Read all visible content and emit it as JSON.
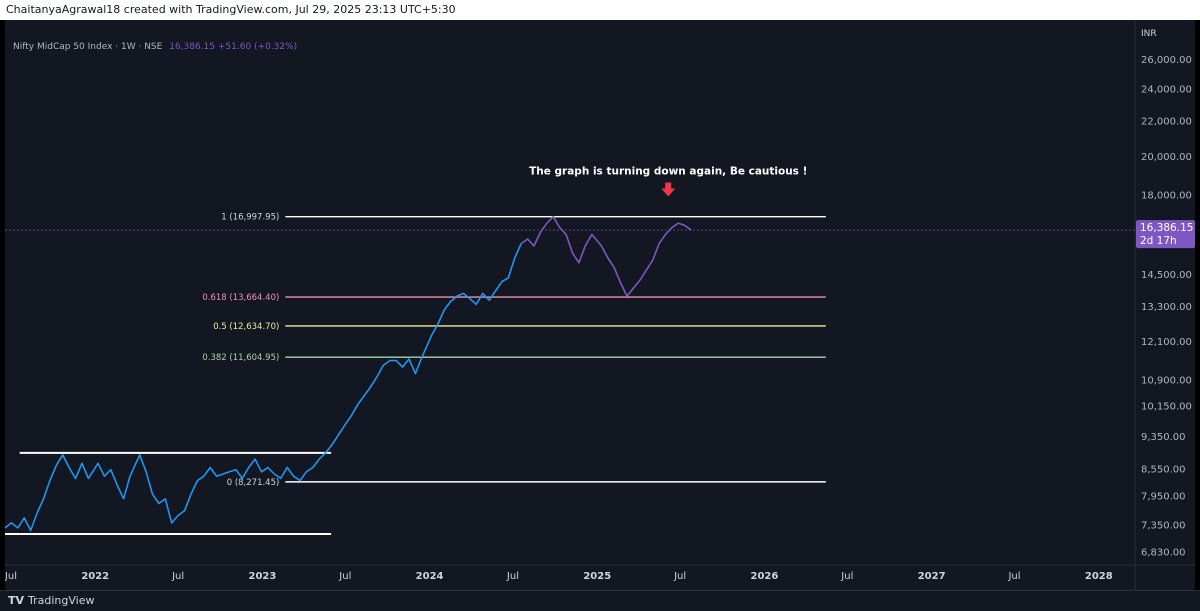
{
  "header": {
    "credit": "ChaitanyaAgrawal18 created with TradingView.com, Jul 29, 2025 23:13 UTC+5:30"
  },
  "legend": {
    "symbol": "Nifty MidCap 50 Index · 1W · NSE",
    "value": "16,386.15 +51.60 (+0.32%)"
  },
  "footer": {
    "brand_mark": "TV",
    "brand": "TradingView"
  },
  "colors": {
    "background": "#131722",
    "price_line": "#2196f3",
    "price_line_recent": "#7e57c2",
    "arrow": "#f23645",
    "fib_618": "#f48fb1",
    "fib_05": "#e6ee9c",
    "fib_0382": "#a5d6a7",
    "current_price_badge": "#7e57c2"
  },
  "chart_data": {
    "type": "line",
    "title": "Nifty MidCap 50 Index · 1W · NSE",
    "currency": "INR",
    "y_scale": "log",
    "ylim": [
      6600,
      29000
    ],
    "xlim": [
      "2021-06-18",
      "2028-03-20"
    ],
    "grid": false,
    "x_ticks": [
      {
        "label": "Jul",
        "date": "2021-07-01"
      },
      {
        "label": "2022",
        "date": "2022-01-01"
      },
      {
        "label": "Jul",
        "date": "2022-07-01"
      },
      {
        "label": "2023",
        "date": "2023-01-01"
      },
      {
        "label": "Jul",
        "date": "2023-07-01"
      },
      {
        "label": "2024",
        "date": "2024-01-01"
      },
      {
        "label": "Jul",
        "date": "2024-07-01"
      },
      {
        "label": "2025",
        "date": "2025-01-01"
      },
      {
        "label": "Jul",
        "date": "2025-07-01"
      },
      {
        "label": "2026",
        "date": "2026-01-01"
      },
      {
        "label": "Jul",
        "date": "2026-07-01"
      },
      {
        "label": "2027",
        "date": "2027-01-01"
      },
      {
        "label": "Jul",
        "date": "2027-07-01"
      },
      {
        "label": "2028",
        "date": "2028-01-01"
      }
    ],
    "y_ticks": [
      {
        "label": "26,000.00",
        "value": 26000
      },
      {
        "label": "24,000.00",
        "value": 24000
      },
      {
        "label": "22,000.00",
        "value": 22000
      },
      {
        "label": "20,000.00",
        "value": 20000
      },
      {
        "label": "18,000.00",
        "value": 18000
      },
      {
        "label": "14,500.00",
        "value": 14500
      },
      {
        "label": "13,300.00",
        "value": 13300
      },
      {
        "label": "12,100.00",
        "value": 12100
      },
      {
        "label": "10,900.00",
        "value": 10900
      },
      {
        "label": "10,150.00",
        "value": 10150
      },
      {
        "label": "9,350.00",
        "value": 9350
      },
      {
        "label": "8,550.00",
        "value": 8550
      },
      {
        "label": "7,950.00",
        "value": 7950
      },
      {
        "label": "7,350.00",
        "value": 7350
      },
      {
        "label": "6,830.00",
        "value": 6830
      }
    ],
    "last_price": {
      "value": 16386.15,
      "label": "16,386.15",
      "countdown": "2d 17h"
    },
    "fib_levels": [
      {
        "label": "1 (16,997.95)",
        "value": 16997.95,
        "color": "#ffffff",
        "from": "2023-02-20",
        "to": "2026-05-15"
      },
      {
        "label": "0.618 (13,664.40)",
        "value": 13664.4,
        "color": "#f48fb1",
        "from": "2023-02-20",
        "to": "2026-05-15"
      },
      {
        "label": "0.5 (12,634.70)",
        "value": 12634.7,
        "color": "#e6ee9c",
        "from": "2023-02-20",
        "to": "2026-05-15"
      },
      {
        "label": "0.382 (11,604.95)",
        "value": 11604.95,
        "color": "#a5d6a7",
        "from": "2023-02-20",
        "to": "2026-05-15"
      },
      {
        "label": "0 (8,271.45)",
        "value": 8271.45,
        "color": "#ffffff",
        "from": "2023-02-20",
        "to": "2026-05-15"
      }
    ],
    "horizontal_lines": [
      {
        "value": 8950,
        "from": "2021-07-20",
        "to": "2023-05-31",
        "color": "#ffffff"
      },
      {
        "value": 7180,
        "from": "2021-06-18",
        "to": "2023-05-31",
        "color": "#ffffff"
      }
    ],
    "annotation": {
      "text": "The graph is turning down again, Be cautious !",
      "date": "2025-06-05",
      "value": 18450
    },
    "series": [
      {
        "color": "#2196f3",
        "points": [
          [
            "2021-06-18",
            7300
          ],
          [
            "2021-07-02",
            7400
          ],
          [
            "2021-07-16",
            7300
          ],
          [
            "2021-07-30",
            7500
          ],
          [
            "2021-08-13",
            7250
          ],
          [
            "2021-08-27",
            7600
          ],
          [
            "2021-09-10",
            7900
          ],
          [
            "2021-09-24",
            8300
          ],
          [
            "2021-10-08",
            8650
          ],
          [
            "2021-10-22",
            8900
          ],
          [
            "2021-11-05",
            8600
          ],
          [
            "2021-11-19",
            8350
          ],
          [
            "2021-12-03",
            8700
          ],
          [
            "2021-12-17",
            8350
          ],
          [
            "2022-01-07",
            8700
          ],
          [
            "2022-01-21",
            8400
          ],
          [
            "2022-02-04",
            8550
          ],
          [
            "2022-02-18",
            8200
          ],
          [
            "2022-03-04",
            7900
          ],
          [
            "2022-03-18",
            8400
          ],
          [
            "2022-04-08",
            8900
          ],
          [
            "2022-04-22",
            8500
          ],
          [
            "2022-05-06",
            8000
          ],
          [
            "2022-05-20",
            7800
          ],
          [
            "2022-06-03",
            7900
          ],
          [
            "2022-06-17",
            7400
          ],
          [
            "2022-07-01",
            7550
          ],
          [
            "2022-07-15",
            7650
          ],
          [
            "2022-07-29",
            8000
          ],
          [
            "2022-08-12",
            8300
          ],
          [
            "2022-08-26",
            8400
          ],
          [
            "2022-09-09",
            8600
          ],
          [
            "2022-09-23",
            8400
          ],
          [
            "2022-10-07",
            8450
          ],
          [
            "2022-10-21",
            8500
          ],
          [
            "2022-11-04",
            8550
          ],
          [
            "2022-11-18",
            8350
          ],
          [
            "2022-12-02",
            8600
          ],
          [
            "2022-12-16",
            8800
          ],
          [
            "2022-12-30",
            8500
          ],
          [
            "2023-01-13",
            8600
          ],
          [
            "2023-01-27",
            8450
          ],
          [
            "2023-02-10",
            8350
          ],
          [
            "2023-02-24",
            8600
          ],
          [
            "2023-03-10",
            8400
          ],
          [
            "2023-03-24",
            8300
          ],
          [
            "2023-04-07",
            8500
          ],
          [
            "2023-04-21",
            8600
          ],
          [
            "2023-05-05",
            8800
          ],
          [
            "2023-05-19",
            8950
          ],
          [
            "2023-06-02",
            9150
          ],
          [
            "2023-06-16",
            9400
          ],
          [
            "2023-06-30",
            9650
          ],
          [
            "2023-07-14",
            9900
          ],
          [
            "2023-07-28",
            10200
          ],
          [
            "2023-08-11",
            10450
          ],
          [
            "2023-08-25",
            10700
          ],
          [
            "2023-09-08",
            11000
          ],
          [
            "2023-09-22",
            11350
          ],
          [
            "2023-10-06",
            11500
          ],
          [
            "2023-10-20",
            11500
          ],
          [
            "2023-11-03",
            11300
          ],
          [
            "2023-11-17",
            11550
          ],
          [
            "2023-12-01",
            11100
          ],
          [
            "2023-12-15",
            11600
          ],
          [
            "2024-01-05",
            12300
          ],
          [
            "2024-01-19",
            12700
          ],
          [
            "2024-02-02",
            13200
          ],
          [
            "2024-02-16",
            13500
          ],
          [
            "2024-03-01",
            13700
          ],
          [
            "2024-03-15",
            13800
          ],
          [
            "2024-03-29",
            13600
          ],
          [
            "2024-04-12",
            13400
          ],
          [
            "2024-04-26",
            13800
          ],
          [
            "2024-05-10",
            13550
          ],
          [
            "2024-05-24",
            13900
          ],
          [
            "2024-06-07",
            14250
          ],
          [
            "2024-06-21",
            14400
          ],
          [
            "2024-07-05",
            15200
          ],
          [
            "2024-07-19",
            15800
          ]
        ]
      },
      {
        "color": "#7e57c2",
        "points": [
          [
            "2024-07-19",
            15800
          ],
          [
            "2024-08-02",
            16000
          ],
          [
            "2024-08-16",
            15700
          ],
          [
            "2024-08-30",
            16300
          ],
          [
            "2024-09-13",
            16700
          ],
          [
            "2024-09-27",
            16997
          ],
          [
            "2024-10-11",
            16500
          ],
          [
            "2024-10-25",
            16200
          ],
          [
            "2024-11-08",
            15400
          ],
          [
            "2024-11-22",
            15000
          ],
          [
            "2024-12-06",
            15700
          ],
          [
            "2024-12-20",
            16200
          ],
          [
            "2025-01-10",
            15700
          ],
          [
            "2025-01-24",
            15200
          ],
          [
            "2025-02-07",
            14800
          ],
          [
            "2025-02-21",
            14200
          ],
          [
            "2025-03-07",
            13700
          ],
          [
            "2025-03-21",
            14000
          ],
          [
            "2025-04-04",
            14300
          ],
          [
            "2025-04-18",
            14700
          ],
          [
            "2025-05-02",
            15100
          ],
          [
            "2025-05-16",
            15800
          ],
          [
            "2025-05-30",
            16200
          ],
          [
            "2025-06-13",
            16500
          ],
          [
            "2025-06-27",
            16700
          ],
          [
            "2025-07-11",
            16600
          ],
          [
            "2025-07-25",
            16386
          ]
        ]
      }
    ]
  }
}
